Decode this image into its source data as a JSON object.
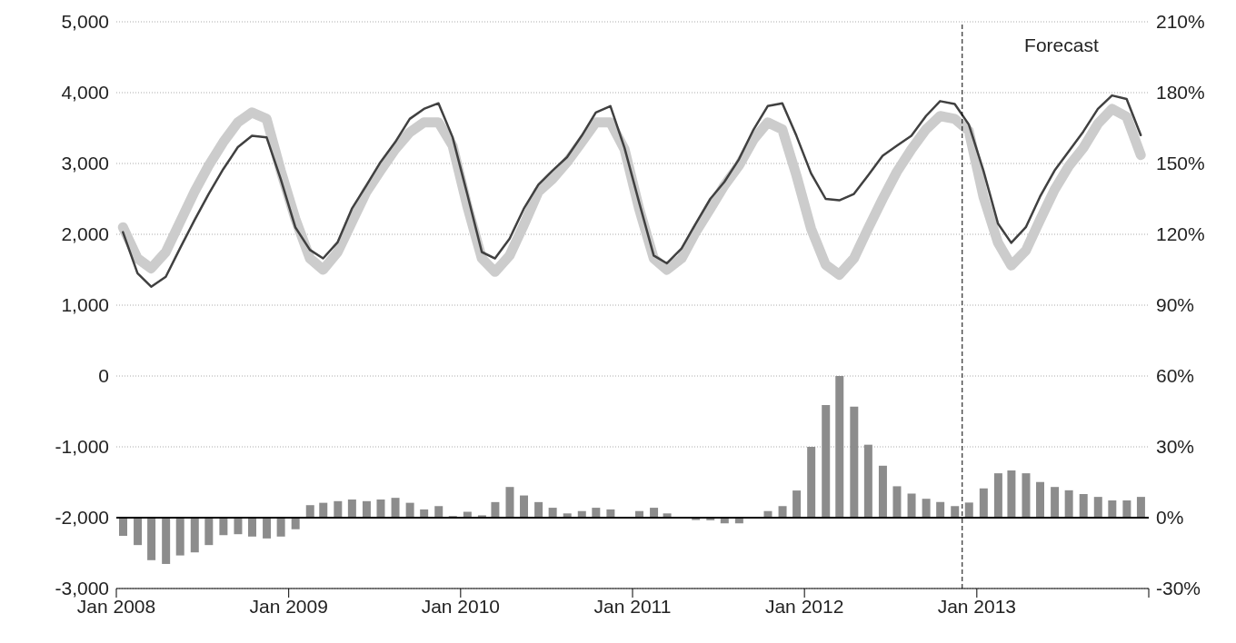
{
  "chart_data": {
    "type": "line",
    "x": [
      "2008-01-15",
      "2008-02-15",
      "2008-03-15",
      "2008-04-15",
      "2008-05-15",
      "2008-06-15",
      "2008-07-15",
      "2008-08-15",
      "2008-09-15",
      "2008-10-15",
      "2008-11-15",
      "2008-12-15",
      "2009-01-15",
      "2009-02-15",
      "2009-03-15",
      "2009-04-15",
      "2009-05-15",
      "2009-06-15",
      "2009-07-15",
      "2009-08-15",
      "2009-09-15",
      "2009-10-15",
      "2009-11-15",
      "2009-12-15",
      "2010-01-15",
      "2010-02-15",
      "2010-03-15",
      "2010-04-15",
      "2010-05-15",
      "2010-06-15",
      "2010-07-15",
      "2010-08-15",
      "2010-09-15",
      "2010-10-15",
      "2010-11-15",
      "2010-12-15",
      "2011-01-15",
      "2011-02-15",
      "2011-03-15",
      "2011-04-15",
      "2011-05-15",
      "2011-06-15",
      "2011-07-15",
      "2011-08-15",
      "2011-09-15",
      "2011-10-15",
      "2011-11-15",
      "2011-12-15",
      "2012-01-15",
      "2012-02-15",
      "2012-03-15",
      "2012-04-15",
      "2012-05-15",
      "2012-06-15",
      "2012-07-15",
      "2012-08-15",
      "2012-09-15",
      "2012-10-15",
      "2012-11-15",
      "2012-12-15",
      "2013-01-15",
      "2013-02-15",
      "2013-03-15",
      "2013-04-15",
      "2013-05-15",
      "2013-06-15",
      "2013-07-15",
      "2013-08-15",
      "2013-09-15",
      "2013-10-15",
      "2013-11-15",
      "2013-12-15"
    ],
    "series": [
      {
        "type": "bar",
        "axis": "y2",
        "color": "#8c8c8c",
        "values": [
          -7.7,
          -11.6,
          -18,
          -19.6,
          -16,
          -14.7,
          -11.6,
          -7.4,
          -7,
          -8,
          -8.8,
          -8,
          -4.9,
          5.3,
          6.3,
          7,
          7.7,
          7,
          7.7,
          8.4,
          6.3,
          3.5,
          4.9,
          0.7,
          2.5,
          1,
          6.6,
          13,
          9.4,
          6.6,
          4.2,
          1.8,
          2.8,
          4.2,
          3.5,
          null,
          2.8,
          4.2,
          1.8,
          null,
          -1,
          -1.1,
          -2.4,
          -2.4,
          0,
          2.8,
          4.9,
          11.5,
          30,
          47.7,
          60,
          47,
          30.9,
          22,
          13.3,
          10.2,
          8,
          6.6,
          4.9,
          6.4,
          12.4,
          18.8,
          20,
          18.8,
          15.1,
          13,
          11.6,
          10,
          8.8,
          7.3,
          7.3,
          8.8
        ]
      },
      {
        "color": "#cccccc",
        "values": [
          2100,
          1660,
          1520,
          1750,
          2170,
          2600,
          2970,
          3300,
          3580,
          3720,
          3630,
          2900,
          2220,
          1660,
          1500,
          1750,
          2170,
          2600,
          2900,
          3200,
          3440,
          3580,
          3580,
          3250,
          2400,
          1660,
          1470,
          1700,
          2130,
          2600,
          2780,
          3020,
          3300,
          3580,
          3580,
          3200,
          2360,
          1660,
          1500,
          1660,
          2030,
          2360,
          2690,
          2970,
          3340,
          3580,
          3480,
          2830,
          2080,
          1570,
          1430,
          1660,
          2080,
          2500,
          2880,
          3200,
          3480,
          3670,
          3630,
          3460,
          2530,
          1880,
          1560,
          1770,
          2200,
          2630,
          2960,
          3220,
          3560,
          3770,
          3660,
          3120
        ]
      },
      {
        "color": "#404040",
        "values": [
          2030,
          1450,
          1260,
          1400,
          1800,
          2200,
          2570,
          2920,
          3230,
          3390,
          3370,
          2780,
          2100,
          1780,
          1660,
          1890,
          2360,
          2690,
          3020,
          3300,
          3630,
          3770,
          3850,
          3370,
          2570,
          1750,
          1660,
          1940,
          2360,
          2700,
          2900,
          3090,
          3390,
          3720,
          3810,
          3220,
          2450,
          1700,
          1590,
          1800,
          2150,
          2500,
          2740,
          3060,
          3480,
          3810,
          3850,
          3390,
          2860,
          2500,
          2480,
          2570,
          2830,
          3110,
          3250,
          3390,
          3670,
          3880,
          3840,
          3550,
          2900,
          2150,
          1880,
          2100,
          2530,
          2900,
          3170,
          3450,
          3770,
          3960,
          3910,
          3400
        ]
      }
    ],
    "xlim": [
      "2008-01-01",
      "2014-01-01"
    ],
    "xticks": [
      {
        "value": "2008-01-01",
        "label": "Jan 2008"
      },
      {
        "value": "2009-01-01",
        "label": "Jan 2009"
      },
      {
        "value": "2010-01-01",
        "label": "Jan 2010"
      },
      {
        "value": "2011-01-01",
        "label": "Jan 2011"
      },
      {
        "value": "2012-01-01",
        "label": "Jan 2012"
      },
      {
        "value": "2013-01-01",
        "label": "Jan 2013"
      },
      {
        "value": "2014-01-01",
        "label": null
      }
    ],
    "ylim": [
      -3000,
      5000
    ],
    "yticks": [
      {
        "value": -3000,
        "label": "-3,000"
      },
      {
        "value": -2000,
        "label": "-2,000"
      },
      {
        "value": -1000,
        "label": "-1,000"
      },
      0,
      {
        "value": 1000,
        "label": "1,000"
      },
      {
        "value": 2000,
        "label": "2,000"
      },
      {
        "value": 3000,
        "label": "3,000"
      },
      {
        "value": 4000,
        "label": "4,000"
      },
      {
        "value": 5000,
        "label": "5,000"
      }
    ],
    "y2lim": [
      -30,
      210
    ],
    "y2ticks": [
      {
        "value": -30,
        "label": "-30%"
      },
      {
        "value": 0,
        "label": "0%"
      },
      {
        "value": 30,
        "label": "30%"
      },
      {
        "value": 60,
        "label": "60%"
      },
      {
        "value": 90,
        "label": "90%"
      },
      {
        "value": 120,
        "label": "120%"
      },
      {
        "value": 150,
        "label": "150%"
      },
      {
        "value": 180,
        "label": "180%"
      },
      {
        "value": 210,
        "label": "210%"
      }
    ],
    "ref_lines": [
      {
        "axis": "x",
        "value": "2012-12-01",
        "label": "Forecast",
        "color": "#000000",
        "line_style": "dashed"
      },
      {
        "axis": "y2",
        "value": 0,
        "label": null,
        "color": "#000000",
        "line_style": "solid"
      }
    ],
    "grid": "y",
    "legend": false,
    "marker": "none",
    "line_style": "solid"
  }
}
